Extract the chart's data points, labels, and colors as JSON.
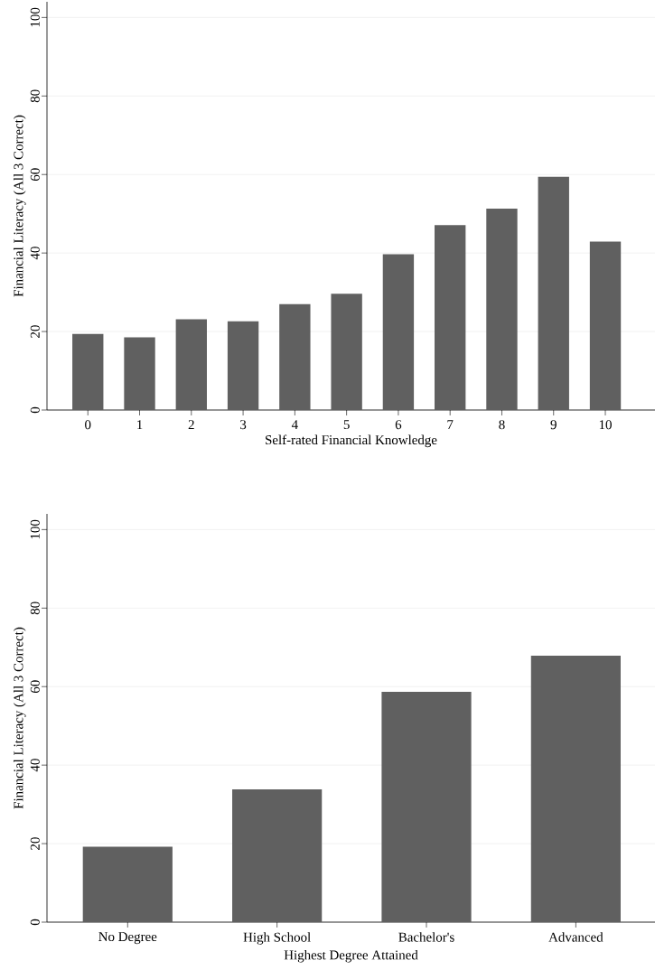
{
  "chart_data": [
    {
      "type": "bar",
      "xlabel": "Self-rated Financial Knowledge",
      "ylabel": "Financial Literacy (All 3 Correct)",
      "categories": [
        "0",
        "1",
        "2",
        "3",
        "4",
        "5",
        "6",
        "7",
        "8",
        "9",
        "10"
      ],
      "values": [
        19.4,
        18.5,
        23.1,
        22.6,
        27.0,
        29.6,
        39.7,
        47.1,
        51.3,
        59.4,
        42.9
      ],
      "color": "#606060",
      "ylim": [
        0,
        104
      ],
      "yticks": [
        0,
        20,
        40,
        60,
        80,
        100
      ],
      "grid": "y"
    },
    {
      "type": "bar",
      "xlabel": "Highest Degree Attained",
      "ylabel": "Financial Literacy (All 3 Correct)",
      "categories": [
        "No Degree",
        "High School",
        "Bachelor's",
        "Advanced"
      ],
      "values": [
        19.2,
        33.8,
        58.7,
        67.9
      ],
      "color": "#606060",
      "ylim": [
        0,
        104
      ],
      "yticks": [
        0,
        20,
        40,
        60,
        80,
        100
      ],
      "grid": "y"
    }
  ]
}
